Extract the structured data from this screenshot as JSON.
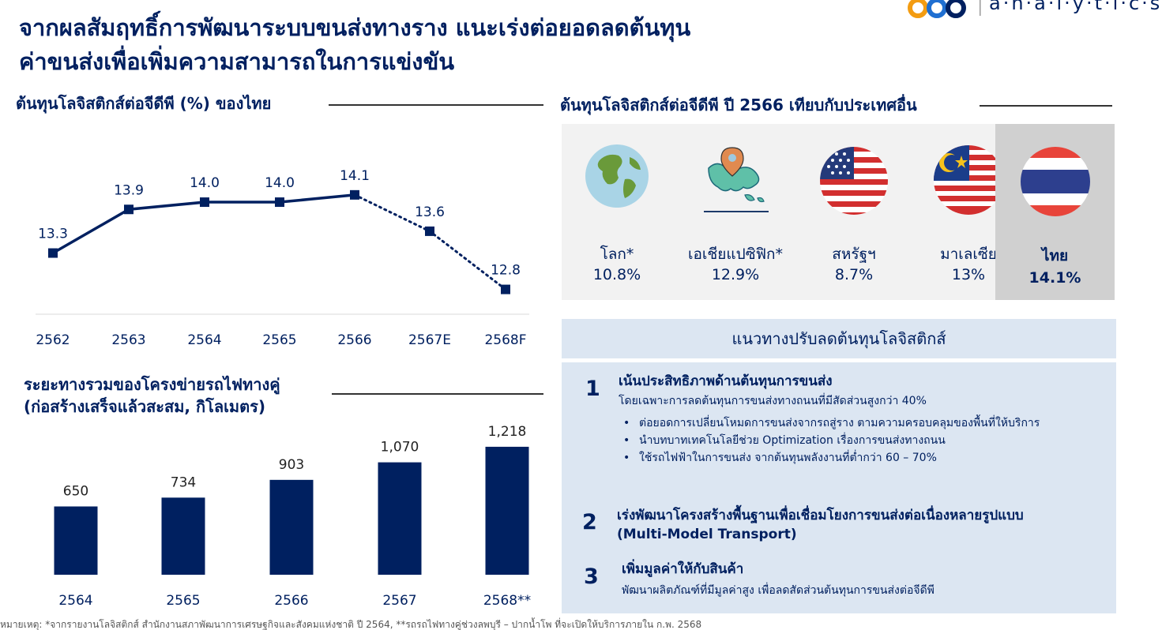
{
  "headline": {
    "line1": "จากผลสัมฤทธิ์การพัฒนาระบบขนส่งทางราง แนะเร่งต่อยอดลดต้นทุน",
    "line2": "ค่าขนส่งเพื่อเพิ่มความสามารถในการแข่งขัน"
  },
  "logo": {
    "text": "a·n·a·l·y·t·i·c·s"
  },
  "chart_data": [
    {
      "type": "line",
      "title": "ต้นทุนโลจิสติกส์ต่อจีดีพี (%) ของไทย",
      "categories": [
        "2562",
        "2563",
        "2564",
        "2565",
        "2566",
        "2567E",
        "2568F"
      ],
      "values": [
        13.3,
        13.9,
        14.0,
        14.0,
        14.1,
        13.6,
        12.8
      ],
      "value_labels": [
        "13.3",
        "13.9",
        "14.0",
        "14.0",
        "14.1",
        "13.6",
        "12.8"
      ],
      "solid_until_index": 4,
      "dotted_from_index": 4,
      "ylim": [
        12.6,
        14.5
      ],
      "line_color": "#002060"
    },
    {
      "type": "bar",
      "title_line1": "ระยะทางรวมของโครงข่ายรถไฟทางคู่",
      "title_line2": "(ก่อสร้างเสร็จแล้วสะสม, กิโลเมตร)",
      "categories": [
        "2564",
        "2565",
        "2566",
        "2567",
        "2568**"
      ],
      "values": [
        650,
        734,
        903,
        1070,
        1218
      ],
      "value_labels": [
        "650",
        "734",
        "903",
        "1,070",
        "1,218"
      ],
      "ylim": [
        0,
        1300
      ],
      "bar_color": "#002060"
    }
  ],
  "comparison": {
    "title": "ต้นทุนโลจิสติกส์ต่อจีดีพี ปี 2566 เทียบกับประเทศอื่น",
    "items": [
      {
        "name": "โลก*",
        "value": "10.8%",
        "icon": "globe-icon"
      },
      {
        "name": "เอเชียแปซิฟิก*",
        "value": "12.9%",
        "icon": "asia-pacific-map-icon"
      },
      {
        "name": "สหรัฐฯ",
        "value": "8.7%",
        "icon": "usa-flag-icon"
      },
      {
        "name": "มาเลเซีย",
        "value": "13%",
        "icon": "malaysia-flag-icon"
      },
      {
        "name": "ไทย",
        "value": "14.1%",
        "icon": "thailand-flag-icon",
        "highlight": true
      }
    ]
  },
  "guidelines": {
    "header": "แนวทางปรับลดต้นทุนโลจิสติกส์",
    "items": [
      {
        "num": "1",
        "title": "เน้นประสิทธิภาพด้านต้นทุนการขนส่ง",
        "desc": "โดยเฉพาะการลดต้นทุนการขนส่งทางถนนที่มีสัดส่วนสูงกว่า 40%",
        "bullets": [
          "ต่อยอดการเปลี่ยนโหมดการขนส่งจากรถสู่ราง ตามความครอบคลุมของพื้นที่ให้บริการ",
          "นำบทบาทเทคโนโลยีช่วย Optimization เรื่องการขนส่งทางถนน",
          "ใช้รถไฟฟ้าในการขนส่ง จากต้นทุนพลังงานที่ต่ำกว่า 60 – 70%"
        ]
      },
      {
        "num": "2",
        "title": "เร่งพัฒนาโครงสร้างพื้นฐานเพื่อเชื่อมโยงการขนส่งต่อเนื่องหลายรูปแบบ (Multi-Model Transport)",
        "desc": ""
      },
      {
        "num": "3",
        "title": "เพิ่มมูลค่าให้กับสินค้า",
        "desc": "พัฒนาผลิตภัณฑ์ที่มีมูลค่าสูง เพื่อลดสัดส่วนต้นทุนการขนส่งต่อจีดีพี"
      }
    ]
  },
  "footnote": "หมายเหตุ: *จากรายงานโลจิสติกส์ สำนักงานสภาพัฒนาการเศรษฐกิจและสังคมแห่งชาติ ปี 2564, **รถรถไฟทางคู่ช่วงลพบุรี – ปากน้ำโพ ที่จะเปิดให้บริการภายใน ก.พ. 2568",
  "colors": {
    "navy": "#002060",
    "panel_gray": "#f2f2f2",
    "highlight_gray": "#d0d0d0",
    "light_blue": "#dce6f2"
  }
}
